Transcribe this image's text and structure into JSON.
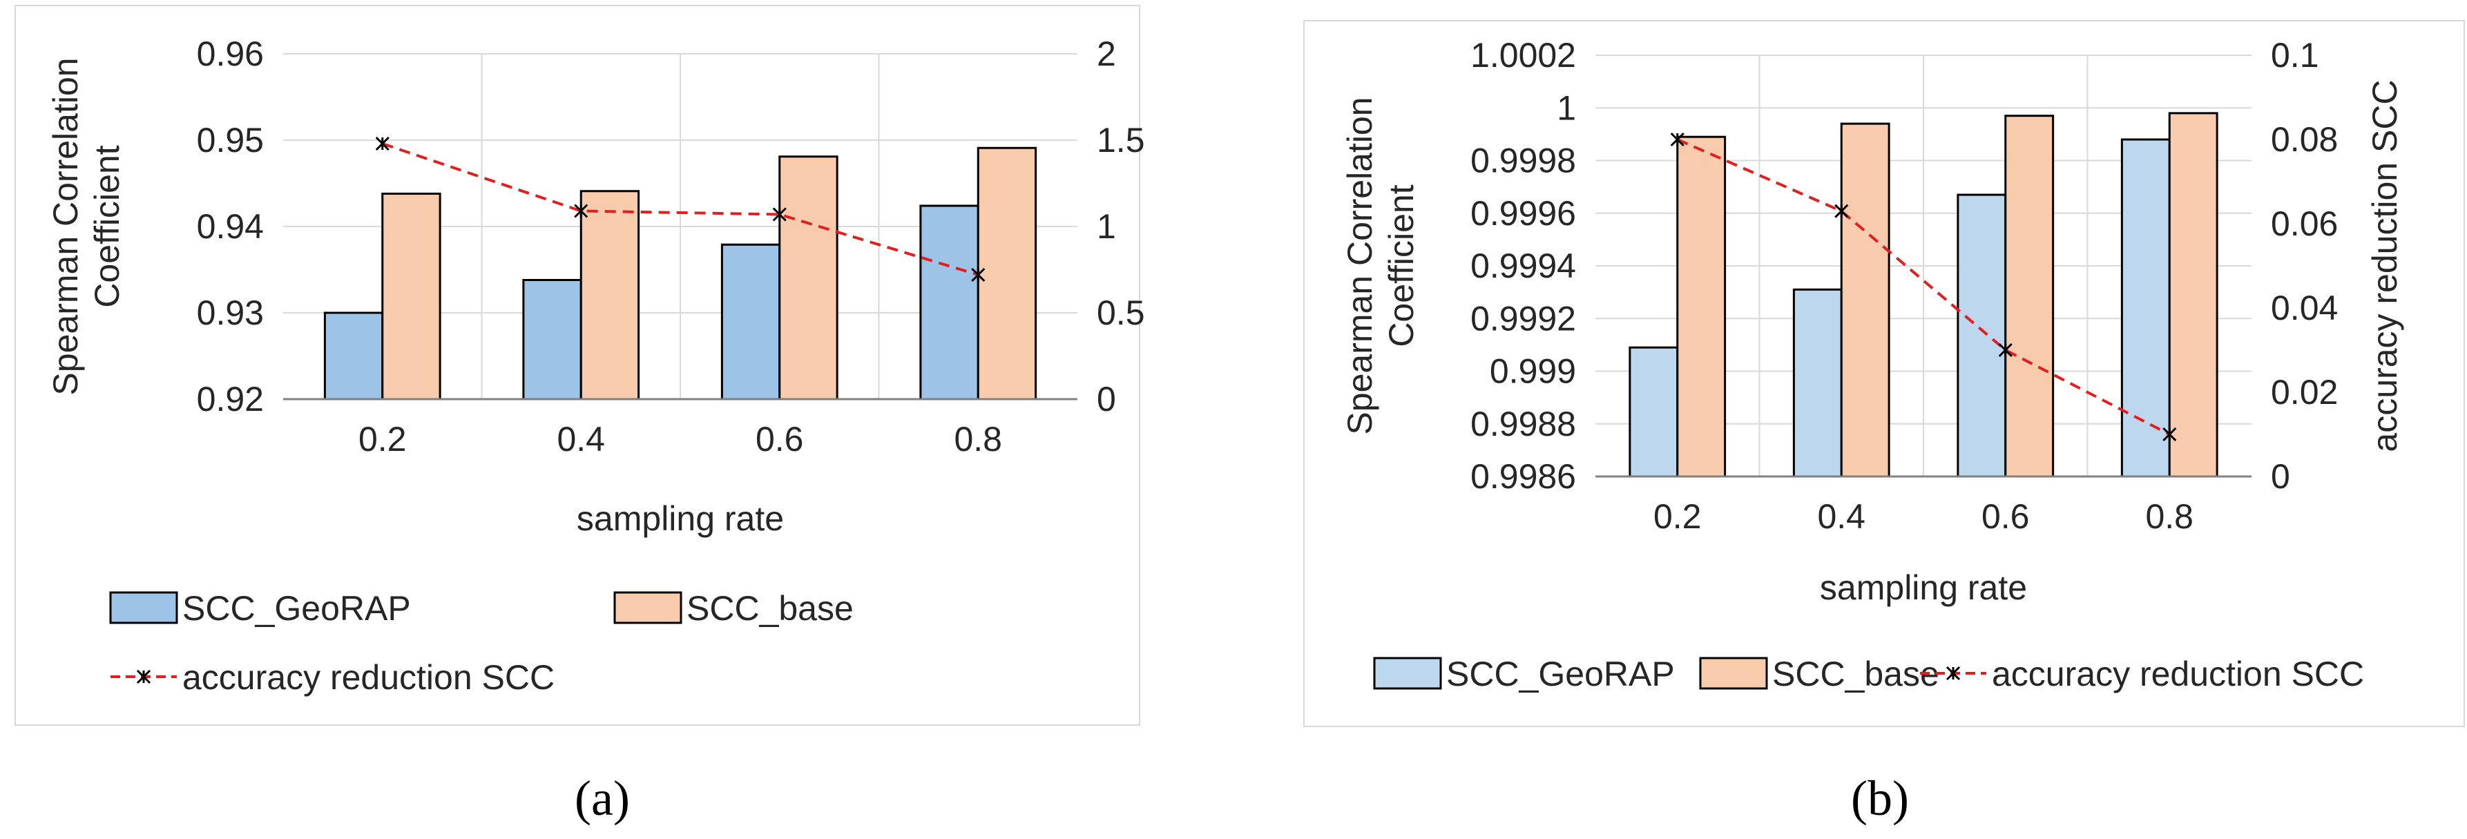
{
  "chart_data": [
    {
      "type": "bar",
      "caption": "(a)",
      "categories": [
        "0.2",
        "0.4",
        "0.6",
        "0.8"
      ],
      "xlabel": "sampling rate",
      "ylabel": "Spearman Correlation Coefficient",
      "ylabel_lines": [
        "Spearman Correlation",
        "Coefficient"
      ],
      "y2label": "",
      "ylim": [
        0.92,
        0.96
      ],
      "yticks": [
        "0.92",
        "0.93",
        "0.94",
        "0.95",
        "0.96"
      ],
      "y2lim": [
        0,
        2
      ],
      "y2ticks": [
        "0",
        "0.5",
        "1",
        "1.5",
        "2"
      ],
      "grid": true,
      "legend_position": "bottom",
      "series": [
        {
          "name": "SCC_GeoRAP",
          "kind": "bar",
          "axis": "left",
          "values": [
            0.93,
            0.9338,
            0.9379,
            0.9424
          ]
        },
        {
          "name": "SCC_base",
          "kind": "bar",
          "axis": "left",
          "values": [
            0.9438,
            0.9441,
            0.9481,
            0.9491
          ]
        },
        {
          "name": "accuracy reduction SCC",
          "kind": "line",
          "axis": "right",
          "values": [
            1.48,
            1.09,
            1.07,
            0.72
          ]
        }
      ],
      "colors": {
        "bar1": "#9DC3E6",
        "bar2": "#F8CBAD",
        "line": "#E02020",
        "edge": "#000000",
        "grid": "#D9D9D9"
      }
    },
    {
      "type": "bar",
      "caption": "(b)",
      "categories": [
        "0.2",
        "0.4",
        "0.6",
        "0.8"
      ],
      "xlabel": "sampling rate",
      "ylabel": "Spearman Correlation Coefficient",
      "ylabel_lines": [
        "Spearman Correlation",
        "Coefficient"
      ],
      "y2label": "accuracy reduction SCC",
      "ylim": [
        0.9986,
        1.0002
      ],
      "yticks": [
        "0.9986",
        "0.9988",
        "0.999",
        "0.9992",
        "0.9994",
        "0.9996",
        "0.9998",
        "1",
        "1.0002"
      ],
      "y2lim": [
        0,
        0.1
      ],
      "y2ticks": [
        "0",
        "0.02",
        "0.04",
        "0.06",
        "0.08",
        "0.1"
      ],
      "grid": true,
      "legend_position": "bottom",
      "series": [
        {
          "name": "SCC_GeoRAP",
          "kind": "bar",
          "axis": "left",
          "values": [
            0.99909,
            0.99931,
            0.99967,
            0.99988
          ]
        },
        {
          "name": "SCC_base",
          "kind": "bar",
          "axis": "left",
          "values": [
            0.99989,
            0.99994,
            0.99997,
            0.99998
          ]
        },
        {
          "name": "accuracy reduction SCC",
          "kind": "line",
          "axis": "right",
          "values": [
            0.08,
            0.063,
            0.03,
            0.01
          ]
        }
      ],
      "colors": {
        "bar1": "#BDD7EE",
        "bar2": "#F8CBAD",
        "line": "#E02020",
        "edge": "#000000",
        "grid": "#D9D9D9"
      }
    }
  ]
}
